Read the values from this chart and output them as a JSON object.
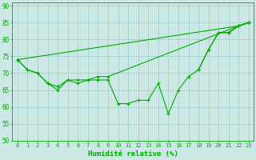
{
  "xlabel": "Humidité relative (%)",
  "background_color": "#cce8e4",
  "grid_color": "#99cccc",
  "line_color": "#00aa00",
  "xlim": [
    -0.5,
    23.5
  ],
  "ylim": [
    50,
    91
  ],
  "yticks": [
    50,
    55,
    60,
    65,
    70,
    75,
    80,
    85,
    90
  ],
  "xticks": [
    0,
    1,
    2,
    3,
    4,
    5,
    6,
    7,
    8,
    9,
    10,
    11,
    12,
    13,
    14,
    15,
    16,
    17,
    18,
    19,
    20,
    21,
    22,
    23
  ],
  "series": [
    [
      74,
      71,
      70,
      67,
      65,
      68,
      67,
      68,
      68,
      68,
      61,
      61,
      62,
      62,
      67,
      58,
      65,
      69,
      71,
      77,
      82,
      82,
      84,
      85
    ],
    [
      74,
      71,
      70,
      67,
      66,
      68,
      68,
      68,
      69,
      69,
      null,
      null,
      null,
      null,
      null,
      null,
      null,
      null,
      null,
      null,
      null,
      null,
      84,
      85
    ],
    [
      74,
      null,
      null,
      null,
      null,
      null,
      null,
      null,
      null,
      null,
      null,
      null,
      null,
      null,
      null,
      null,
      null,
      null,
      null,
      null,
      null,
      null,
      84,
      85
    ],
    [
      null,
      null,
      null,
      null,
      null,
      null,
      null,
      null,
      null,
      null,
      null,
      null,
      null,
      null,
      null,
      null,
      null,
      null,
      null,
      null,
      null,
      82,
      84,
      85
    ],
    [
      null,
      null,
      null,
      null,
      null,
      null,
      null,
      null,
      null,
      null,
      null,
      null,
      null,
      null,
      null,
      null,
      null,
      null,
      71,
      77,
      82,
      82,
      84,
      85
    ]
  ]
}
